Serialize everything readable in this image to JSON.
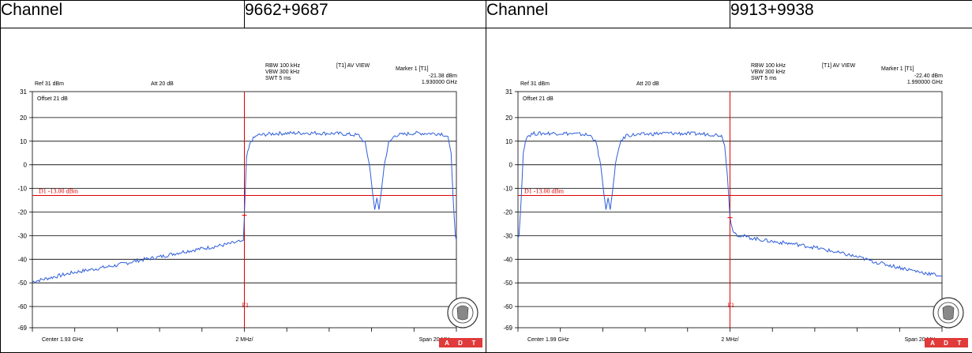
{
  "header": [
    {
      "label": "Channel",
      "value": "9662+9687"
    },
    {
      "label": "Channel",
      "value": "9913+9938"
    }
  ],
  "colors": {
    "trace": "#2f5ed9",
    "marker": "#e00000",
    "grid": "#000000",
    "logo_bg": "#e03a3a"
  },
  "badge": {
    "letters": [
      "A",
      "D",
      "T"
    ],
    "seal_text": "BUREAU VERITAS 1828"
  },
  "chart_data": [
    {
      "type": "line",
      "settings": {
        "rbw": "RBW 100 kHz",
        "vbw": "VBW 300 kHz",
        "swt": "SWT 5 ms",
        "mode": "[T1] AV VIEW",
        "ref": "Ref 31 dBm",
        "att": "Att  20 dB",
        "offset": "Offset 21 dB"
      },
      "marker": {
        "title": "Marker 1 [T1]",
        "level": "-21.38 dBm",
        "freq": "1.930000 GHz",
        "label": "F1"
      },
      "line_label": "D1 -13.00 dBm",
      "line_value": -13,
      "center": "Center 1.93 GHz",
      "div": "2 MHz/",
      "span": "Span 20 MHz",
      "xlim": [
        -10,
        10
      ],
      "ylim": [
        -69,
        31
      ],
      "yticks": [
        "31",
        "20",
        "10",
        "0",
        "-10",
        "-20",
        "-30",
        "-40",
        "-50",
        "-60",
        "-69"
      ],
      "marker_x": 0,
      "trace": [
        [
          -10,
          -49.5
        ],
        [
          -9,
          -47.5
        ],
        [
          -8,
          -45.5
        ],
        [
          -7,
          -44
        ],
        [
          -6,
          -42.5
        ],
        [
          -5,
          -40.5
        ],
        [
          -4,
          -39
        ],
        [
          -3,
          -37
        ],
        [
          -2,
          -35.5
        ],
        [
          -1,
          -34
        ],
        [
          -0.2,
          -32.5
        ],
        [
          -0.05,
          -32
        ],
        [
          0,
          -21.4
        ],
        [
          0.1,
          3
        ],
        [
          0.3,
          10
        ],
        [
          0.6,
          12.5
        ],
        [
          1.5,
          13.3
        ],
        [
          3,
          13.5
        ],
        [
          4.5,
          13.2
        ],
        [
          5.4,
          12.5
        ],
        [
          5.7,
          9
        ],
        [
          5.9,
          0
        ],
        [
          6.05,
          -12
        ],
        [
          6.15,
          -19
        ],
        [
          6.25,
          -14
        ],
        [
          6.35,
          -19
        ],
        [
          6.45,
          -12
        ],
        [
          6.6,
          0
        ],
        [
          6.8,
          9
        ],
        [
          7.1,
          12.5
        ],
        [
          8,
          13.4
        ],
        [
          9.3,
          13.2
        ],
        [
          9.6,
          12
        ],
        [
          9.75,
          5
        ],
        [
          9.85,
          -15
        ],
        [
          9.95,
          -30
        ],
        [
          10,
          -32
        ]
      ]
    },
    {
      "type": "line",
      "settings": {
        "rbw": "RBW 100 kHz",
        "vbw": "VBW 300 kHz",
        "swt": "SWT 5 ms",
        "mode": "[T1] AV VIEW",
        "ref": "Ref 31 dBm",
        "att": "Att  20 dB",
        "offset": "Offset 21 dB"
      },
      "marker": {
        "title": "Marker 1 [T1]",
        "level": "-22.40 dBm",
        "freq": "1.990000 GHz",
        "label": "F1"
      },
      "line_label": "D1 -13.00 dBm",
      "line_value": -13,
      "center": "Center 1.99 GHz",
      "div": "2 MHz/",
      "span": "Span 20 MHz",
      "xlim": [
        -10,
        10
      ],
      "ylim": [
        -69,
        31
      ],
      "yticks": [
        "31",
        "20",
        "10",
        "0",
        "-10",
        "-20",
        "-30",
        "-40",
        "-50",
        "-60",
        "-69"
      ],
      "marker_x": 0,
      "trace": [
        [
          -10,
          -31
        ],
        [
          -9.95,
          -30
        ],
        [
          -9.85,
          -15
        ],
        [
          -9.75,
          5
        ],
        [
          -9.6,
          12
        ],
        [
          -9.3,
          13.2
        ],
        [
          -8,
          13.4
        ],
        [
          -6.8,
          12.8
        ],
        [
          -6.5,
          12
        ],
        [
          -6.3,
          9
        ],
        [
          -6.1,
          0
        ],
        [
          -5.95,
          -12
        ],
        [
          -5.85,
          -19
        ],
        [
          -5.75,
          -14
        ],
        [
          -5.65,
          -19
        ],
        [
          -5.55,
          -12
        ],
        [
          -5.4,
          0
        ],
        [
          -5.2,
          9
        ],
        [
          -4.9,
          12.5
        ],
        [
          -3,
          13.4
        ],
        [
          -1,
          13
        ],
        [
          -0.4,
          12.5
        ],
        [
          -0.25,
          8
        ],
        [
          -0.12,
          -5
        ],
        [
          0,
          -22.4
        ],
        [
          0.1,
          -27
        ],
        [
          0.3,
          -29.5
        ],
        [
          1,
          -31
        ],
        [
          2,
          -32.5
        ],
        [
          3,
          -33.5
        ],
        [
          4,
          -35
        ],
        [
          5,
          -37
        ],
        [
          6,
          -39
        ],
        [
          7,
          -41.5
        ],
        [
          8,
          -43.5
        ],
        [
          9,
          -45.5
        ],
        [
          10,
          -47
        ]
      ]
    }
  ]
}
